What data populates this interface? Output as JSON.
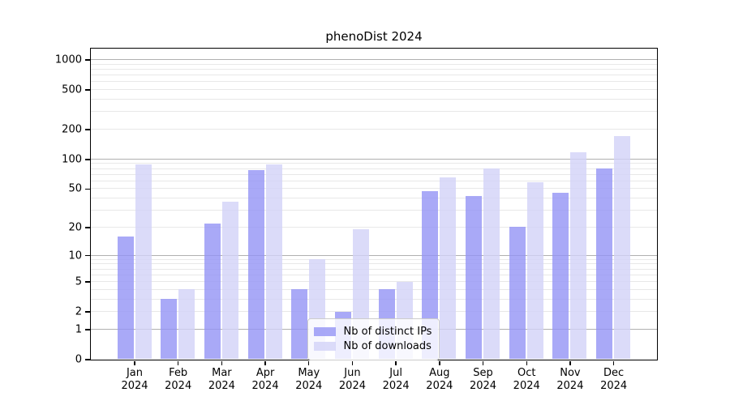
{
  "title": "phenoDist 2024",
  "chart_data": {
    "type": "bar",
    "title": "phenoDist 2024",
    "categories": [
      "Jan",
      "Feb",
      "Mar",
      "Apr",
      "May",
      "Jun",
      "Jul",
      "Aug",
      "Sep",
      "Oct",
      "Nov",
      "Dec"
    ],
    "year_label": "2024",
    "series": [
      {
        "name": "Nb of distinct IPs",
        "color": "#9393f5",
        "values": [
          16,
          3,
          22,
          77,
          4,
          2,
          4,
          47,
          42,
          20,
          45,
          80
        ]
      },
      {
        "name": "Nb of downloads",
        "color": "#d2d2f8",
        "values": [
          88,
          4,
          37,
          88,
          9,
          19,
          5,
          65,
          80,
          58,
          118,
          170
        ]
      }
    ],
    "bar_alpha": 0.8,
    "xlabel": "",
    "ylabel": "",
    "yscale": "symlog",
    "yticks": [
      0,
      1,
      2,
      5,
      10,
      20,
      50,
      100,
      200,
      500,
      1000
    ],
    "ylim": [
      0,
      1300
    ],
    "grid": "both",
    "legend_position": "lower center"
  },
  "colors": {
    "major_grid": "#b0b0b0",
    "minor_grid": "#e8e8e8",
    "spine": "#000000",
    "text": "#000000",
    "legend_border": "#cccccc",
    "background": "#ffffff"
  }
}
